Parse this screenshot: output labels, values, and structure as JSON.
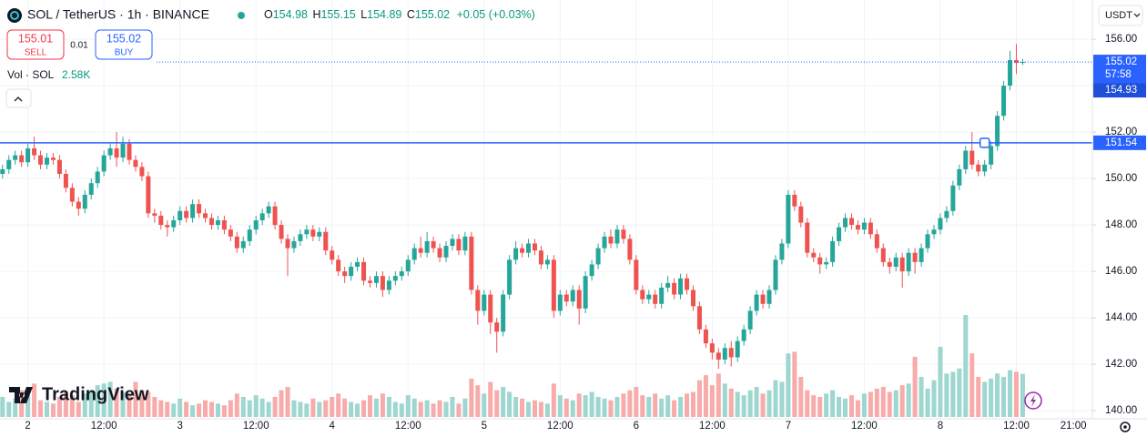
{
  "chart_data": {
    "type": "candlestick",
    "title": "SOL / TetherUS · 1h · BINANCE",
    "ohlc_labels": [
      "O",
      "H",
      "L",
      "C"
    ],
    "change": "+0.05 (+0.03%)",
    "sell": {
      "price": 155.01,
      "label": "SELL"
    },
    "spread": 0.01,
    "buy": {
      "price": 155.02,
      "label": "BUY"
    },
    "volume_title": "Vol · SOL",
    "volume_last_label": "2.58K",
    "currency": "USDT",
    "watermark": "TradingView",
    "countdown": "57:58",
    "marker_price": 154.93,
    "horizontal_line": 151.54,
    "up_color": "#26a69a",
    "down_color": "#ef5350",
    "volume_up_color": "#9ed6d0",
    "volume_down_color": "#f7abaa",
    "line_color": "#2962ff",
    "grid": true,
    "xlim": [
      -0.4,
      172
    ],
    "ylim": [
      139.65,
      157.69
    ],
    "xticks": [
      {
        "value": 4,
        "label": "2"
      },
      {
        "value": 16,
        "label": "12:00"
      },
      {
        "value": 28,
        "label": "3"
      },
      {
        "value": 40,
        "label": "12:00"
      },
      {
        "value": 52,
        "label": "4"
      },
      {
        "value": 64,
        "label": "12:00"
      },
      {
        "value": 76,
        "label": "5"
      },
      {
        "value": 88,
        "label": "12:00"
      },
      {
        "value": 100,
        "label": "6"
      },
      {
        "value": 112,
        "label": "12:00"
      },
      {
        "value": 124,
        "label": "7"
      },
      {
        "value": 136,
        "label": "12:00"
      },
      {
        "value": 148,
        "label": "8"
      },
      {
        "value": 160,
        "label": "12:00"
      },
      {
        "value": 169,
        "label": "21:00"
      }
    ],
    "yticks": [
      {
        "value": 140,
        "label": "140.00"
      },
      {
        "value": 142,
        "label": "142.00"
      },
      {
        "value": 144,
        "label": "144.00"
      },
      {
        "value": 146,
        "label": "146.00"
      },
      {
        "value": 148,
        "label": "148.00"
      },
      {
        "value": 150,
        "label": "150.00"
      },
      {
        "value": 152,
        "label": "152.00"
      },
      {
        "value": 154,
        "label": "154.00"
      },
      {
        "value": 156,
        "label": "156.00"
      }
    ],
    "open": [
      150.2,
      150.4,
      150.8,
      151.0,
      150.7,
      151.3,
      151.0,
      150.6,
      150.9,
      150.8,
      150.2,
      149.6,
      149.0,
      148.7,
      149.3,
      149.8,
      150.3,
      151.0,
      151.3,
      150.9,
      151.5,
      150.8,
      150.5,
      150.1,
      148.5,
      148.4,
      148.0,
      147.9,
      148.2,
      148.6,
      148.3,
      148.9,
      148.5,
      148.3,
      148.0,
      148.2,
      147.8,
      147.5,
      147.0,
      147.3,
      147.8,
      148.2,
      148.5,
      148.8,
      148.0,
      147.4,
      147.0,
      147.3,
      147.6,
      147.8,
      147.5,
      147.7,
      146.9,
      146.5,
      146.0,
      145.8,
      146.2,
      146.4,
      145.6,
      145.5,
      145.8,
      145.2,
      145.6,
      145.8,
      146.0,
      146.5,
      147.0,
      146.8,
      147.3,
      147.0,
      146.6,
      147.1,
      147.4,
      146.9,
      147.5,
      145.2,
      144.3,
      145.0,
      143.8,
      143.4,
      145.0,
      146.5,
      147.0,
      146.8,
      147.2,
      146.9,
      146.3,
      146.5,
      144.3,
      145.0,
      144.7,
      145.2,
      144.4,
      145.8,
      146.3,
      147.0,
      147.5,
      147.2,
      147.8,
      147.4,
      146.5,
      145.2,
      144.8,
      145.0,
      144.6,
      145.3,
      145.5,
      145.0,
      145.7,
      145.2,
      144.5,
      143.5,
      142.9,
      142.5,
      142.2,
      142.7,
      142.3,
      143.0,
      143.5,
      144.3,
      145.0,
      144.6,
      145.2,
      146.5,
      147.2,
      149.3,
      148.8,
      148.1,
      146.8,
      146.6,
      146.3,
      146.4,
      147.3,
      147.9,
      148.3,
      148.0,
      147.8,
      148.1,
      147.6,
      147.0,
      146.4,
      146.2,
      146.6,
      146.0,
      146.8,
      146.4,
      147.0,
      147.6,
      147.8,
      148.3,
      148.6,
      149.7,
      150.4,
      151.2,
      150.6,
      150.3,
      150.6,
      151.4,
      152.7,
      154.0,
      155.1,
      154.98
    ],
    "high": [
      150.6,
      151.0,
      151.2,
      151.2,
      151.5,
      151.8,
      151.2,
      151.1,
      151.1,
      151.0,
      150.4,
      149.8,
      149.2,
      149.5,
      150.0,
      150.5,
      151.2,
      151.5,
      152.0,
      151.8,
      151.7,
      151.0,
      150.7,
      150.3,
      148.7,
      148.6,
      148.2,
      148.4,
      148.8,
      148.8,
      149.1,
      149.1,
      148.7,
      148.5,
      148.4,
      148.4,
      148.0,
      147.7,
      147.5,
      148.0,
      148.4,
      148.7,
      149.0,
      149.0,
      148.2,
      147.6,
      147.5,
      147.8,
      148.0,
      148.0,
      147.9,
      147.9,
      147.1,
      146.7,
      146.2,
      146.4,
      146.6,
      146.6,
      145.8,
      146.0,
      146.0,
      145.8,
      146.0,
      146.2,
      146.7,
      147.2,
      147.5,
      147.7,
      147.5,
      147.2,
      147.3,
      147.6,
      147.6,
      147.7,
      147.7,
      145.4,
      145.2,
      145.2,
      144.0,
      145.2,
      146.7,
      147.3,
      147.2,
      147.4,
      147.4,
      147.1,
      146.7,
      146.7,
      145.2,
      145.2,
      145.4,
      145.4,
      146.0,
      146.5,
      147.2,
      147.7,
      147.8,
      148.0,
      148.0,
      147.6,
      146.7,
      145.4,
      145.2,
      145.2,
      145.5,
      145.8,
      145.7,
      145.9,
      145.9,
      145.4,
      144.7,
      143.7,
      143.1,
      142.7,
      142.9,
      143.0,
      143.2,
      143.7,
      144.5,
      145.2,
      145.2,
      145.4,
      146.7,
      147.4,
      149.5,
      149.5,
      149.0,
      148.3,
      147.0,
      146.8,
      146.6,
      147.5,
      148.1,
      148.5,
      148.5,
      148.2,
      148.3,
      148.3,
      147.8,
      147.2,
      146.6,
      146.8,
      146.8,
      147.0,
      147.0,
      147.2,
      147.8,
      148.0,
      148.5,
      148.8,
      149.9,
      150.6,
      151.4,
      152.0,
      150.8,
      150.8,
      151.6,
      152.9,
      154.2,
      155.5,
      155.8,
      155.15
    ],
    "low": [
      150.0,
      150.2,
      150.6,
      150.5,
      150.5,
      150.8,
      150.4,
      150.4,
      150.6,
      150.0,
      149.4,
      148.8,
      148.4,
      148.5,
      149.1,
      149.6,
      150.1,
      150.8,
      150.5,
      150.7,
      150.6,
      150.3,
      149.9,
      148.3,
      148.1,
      147.8,
      147.5,
      147.7,
      148.0,
      148.1,
      148.1,
      148.3,
      148.1,
      147.8,
      147.8,
      147.6,
      147.3,
      146.8,
      146.8,
      147.1,
      147.6,
      148.0,
      148.3,
      147.8,
      147.2,
      145.8,
      146.8,
      147.1,
      147.4,
      147.3,
      147.3,
      146.7,
      146.3,
      145.8,
      145.5,
      145.6,
      146.0,
      145.4,
      145.3,
      145.3,
      144.9,
      145.0,
      145.4,
      145.6,
      145.8,
      146.3,
      146.6,
      146.6,
      146.8,
      146.4,
      146.4,
      146.9,
      146.7,
      146.7,
      145.0,
      143.7,
      144.1,
      143.3,
      142.5,
      143.2,
      144.8,
      146.3,
      146.6,
      146.6,
      146.7,
      146.1,
      146.1,
      144.0,
      144.1,
      144.5,
      144.5,
      143.7,
      144.2,
      145.6,
      146.1,
      146.8,
      147.0,
      147.0,
      147.2,
      146.3,
      145.0,
      144.6,
      144.6,
      144.4,
      144.4,
      145.1,
      144.8,
      144.8,
      145.0,
      144.3,
      143.3,
      142.7,
      142.2,
      141.8,
      142.0,
      141.9,
      142.1,
      142.8,
      143.3,
      144.1,
      144.4,
      144.4,
      145.0,
      146.3,
      147.0,
      148.6,
      147.9,
      146.6,
      146.4,
      145.9,
      146.1,
      146.2,
      147.1,
      147.7,
      147.8,
      147.6,
      147.6,
      147.4,
      146.8,
      146.2,
      145.9,
      146.0,
      145.3,
      145.8,
      145.9,
      146.2,
      146.8,
      147.4,
      147.6,
      148.1,
      148.4,
      149.5,
      150.2,
      150.4,
      150.1,
      150.1,
      150.4,
      151.2,
      152.5,
      153.8,
      154.5,
      154.89
    ],
    "close": [
      150.4,
      150.8,
      151.0,
      150.7,
      151.3,
      151.0,
      150.6,
      150.9,
      150.8,
      150.2,
      149.6,
      149.0,
      148.7,
      149.3,
      149.8,
      150.3,
      151.0,
      151.3,
      150.9,
      151.5,
      150.8,
      150.5,
      150.1,
      148.5,
      148.4,
      148.0,
      147.9,
      148.2,
      148.6,
      148.3,
      148.9,
      148.5,
      148.3,
      148.0,
      148.2,
      147.8,
      147.5,
      147.0,
      147.3,
      147.8,
      148.2,
      148.5,
      148.8,
      148.0,
      147.4,
      147.0,
      147.3,
      147.6,
      147.8,
      147.5,
      147.7,
      146.9,
      146.5,
      146.0,
      145.8,
      146.2,
      146.4,
      145.6,
      145.5,
      145.8,
      145.2,
      145.6,
      145.8,
      146.0,
      146.5,
      147.0,
      146.8,
      147.3,
      147.0,
      146.6,
      147.1,
      147.4,
      146.9,
      147.5,
      145.2,
      144.3,
      145.0,
      143.8,
      143.4,
      145.0,
      146.5,
      147.0,
      146.8,
      147.2,
      146.9,
      146.3,
      146.5,
      144.3,
      145.0,
      144.7,
      145.2,
      144.4,
      145.8,
      146.3,
      147.0,
      147.5,
      147.2,
      147.8,
      147.4,
      146.5,
      145.2,
      144.8,
      145.0,
      144.6,
      145.3,
      145.5,
      145.0,
      145.7,
      145.2,
      144.5,
      143.5,
      142.9,
      142.5,
      142.2,
      142.7,
      142.3,
      143.0,
      143.5,
      144.3,
      145.0,
      144.6,
      145.2,
      146.5,
      147.2,
      149.3,
      148.8,
      148.1,
      146.8,
      146.6,
      146.3,
      146.4,
      147.3,
      147.9,
      148.3,
      148.0,
      147.8,
      148.1,
      147.6,
      147.0,
      146.4,
      146.2,
      146.6,
      146.0,
      146.8,
      146.4,
      147.0,
      147.6,
      147.8,
      148.3,
      148.6,
      149.7,
      150.4,
      151.2,
      150.6,
      150.3,
      150.6,
      151.4,
      152.7,
      154.0,
      155.1,
      154.98,
      155.02
    ],
    "volume": [
      1.2,
      0.9,
      1.1,
      1.6,
      1.3,
      2.0,
      1.0,
      0.9,
      0.8,
      1.2,
      1.5,
      1.3,
      0.9,
      1.4,
      1.6,
      1.9,
      2.0,
      2.1,
      1.7,
      1.5,
      1.4,
      2.1,
      1.6,
      1.5,
      1.2,
      1.0,
      0.9,
      0.8,
      1.1,
      0.9,
      0.7,
      0.8,
      1.0,
      0.9,
      0.8,
      0.7,
      1.0,
      1.4,
      1.2,
      1.0,
      1.3,
      1.1,
      0.9,
      1.2,
      1.6,
      1.8,
      1.0,
      0.9,
      0.8,
      1.1,
      0.9,
      1.0,
      1.2,
      1.4,
      1.1,
      0.9,
      0.8,
      1.0,
      1.3,
      1.1,
      1.4,
      1.2,
      0.9,
      0.8,
      1.3,
      1.1,
      0.9,
      1.0,
      0.8,
      1.0,
      0.9,
      1.2,
      0.8,
      1.1,
      2.3,
      1.9,
      1.4,
      2.1,
      1.6,
      1.8,
      1.5,
      1.2,
      1.1,
      0.9,
      1.0,
      0.9,
      0.8,
      2.0,
      1.3,
      1.1,
      1.0,
      1.4,
      1.3,
      1.5,
      1.2,
      1.1,
      1.0,
      1.2,
      1.4,
      1.6,
      1.8,
      1.3,
      1.2,
      1.4,
      1.1,
      1.3,
      1.0,
      1.2,
      1.4,
      1.5,
      2.2,
      2.5,
      1.9,
      2.6,
      2.0,
      1.7,
      1.5,
      1.3,
      1.6,
      1.8,
      1.4,
      1.6,
      2.2,
      2.1,
      3.8,
      3.9,
      2.4,
      1.6,
      1.3,
      1.2,
      1.4,
      1.6,
      1.2,
      1.1,
      1.3,
      1.0,
      1.4,
      1.5,
      1.7,
      1.8,
      1.5,
      1.6,
      1.9,
      2.0,
      3.6,
      2.4,
      1.7,
      2.2,
      4.2,
      2.6,
      2.7,
      2.9,
      6.1,
      3.8,
      2.4,
      2.1,
      2.3,
      2.6,
      2.4,
      2.8,
      2.7,
      2.58
    ]
  }
}
